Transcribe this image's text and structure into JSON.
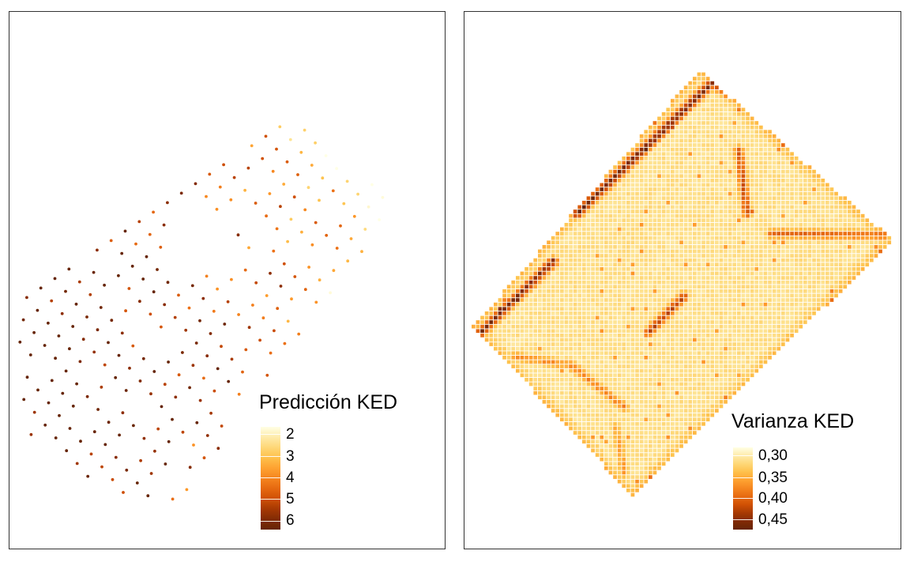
{
  "maps": [
    {
      "id": "prediction",
      "legend": {
        "title": "Predicción KED",
        "labels": [
          "2",
          "3",
          "4",
          "5",
          "6"
        ]
      },
      "colors": [
        "#FFFFE5",
        "#FEE391",
        "#FEC44F",
        "#FE9929",
        "#EC7014",
        "#CC4C02",
        "#8C2D04",
        "#662506"
      ]
    },
    {
      "id": "variance",
      "legend": {
        "title": "Varianza KED",
        "labels": [
          "0,30",
          "0,35",
          "0,40",
          "0,45"
        ]
      },
      "colors": [
        "#FFFFE5",
        "#FEE391",
        "#FEC44F",
        "#FE9929",
        "#EC7014",
        "#CC4C02",
        "#8C2D04",
        "#662506"
      ]
    }
  ]
}
